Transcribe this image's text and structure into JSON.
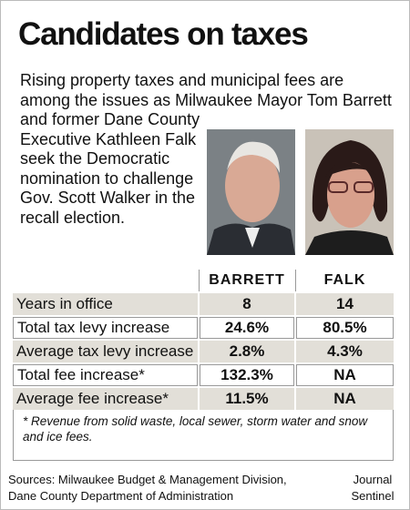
{
  "header": {
    "title": "Candidates on taxes"
  },
  "intro": "Rising property taxes and municipal fees are among the issues as Milwaukee Mayor Tom Barrett and former Dane County Executive Kathleen Falk seek the Democratic nomination to challenge Gov. Scott Walker in the recall election.",
  "table": {
    "columns": [
      "BARRETT",
      "FALK"
    ],
    "rows": [
      [
        "Years in office",
        "8",
        "14"
      ],
      [
        "Total tax levy increase",
        "24.6%",
        "80.5%"
      ],
      [
        "Average tax levy increase",
        "2.8%",
        "4.3%"
      ],
      [
        "Total fee increase*",
        "132.3%",
        "NA"
      ],
      [
        "Average fee increase*",
        "11.5%",
        "NA"
      ]
    ]
  },
  "footnote": "* Revenue from solid waste, local sewer, storm water and snow and ice fees.",
  "sources": "Sources: Milwaukee Budget & Management Division, Dane County Department of Administration",
  "credit": "Journal Sentinel"
}
